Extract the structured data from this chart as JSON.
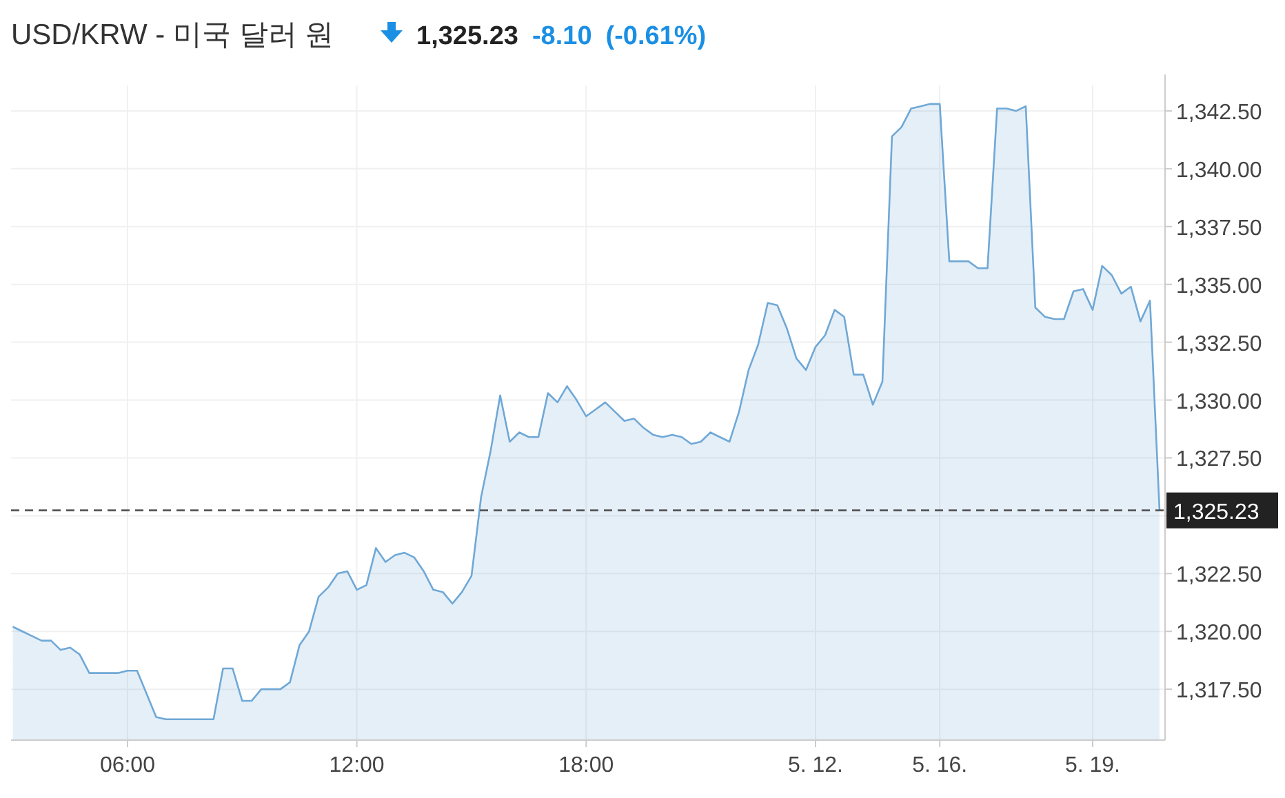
{
  "chart_data": {
    "type": "area",
    "title": "USD/KRW - 미국 달러 원",
    "annotations": [
      "1,325.23",
      "-8.10",
      "(-0.61%)"
    ],
    "categories": [
      null,
      null,
      null,
      null,
      null,
      null,
      null,
      null,
      null,
      null,
      null,
      null,
      "06:00",
      null,
      null,
      null,
      null,
      null,
      null,
      null,
      null,
      null,
      null,
      null,
      null,
      null,
      null,
      null,
      null,
      null,
      null,
      null,
      null,
      null,
      null,
      null,
      "12:00",
      null,
      null,
      null,
      null,
      null,
      null,
      null,
      null,
      null,
      null,
      null,
      null,
      null,
      null,
      null,
      null,
      null,
      null,
      null,
      null,
      null,
      null,
      null,
      "18:00",
      null,
      null,
      null,
      null,
      null,
      null,
      null,
      null,
      null,
      null,
      null,
      null,
      null,
      null,
      null,
      null,
      null,
      null,
      null,
      null,
      null,
      null,
      null,
      "5. 12.",
      null,
      null,
      null,
      null,
      null,
      null,
      null,
      null,
      null,
      null,
      null,
      null,
      "5. 16.",
      null,
      null,
      null,
      null,
      null,
      null,
      null,
      null,
      null,
      null,
      null,
      null,
      null,
      null,
      null,
      "5. 19.",
      null,
      null,
      null,
      null,
      null,
      null,
      null
    ],
    "series": [
      {
        "color": "#6fa8d6",
        "values": [
          1320.2,
          1320.0,
          1319.8,
          1319.6,
          1319.6,
          1319.2,
          1319.3,
          1319.0,
          1318.2,
          1318.2,
          1318.2,
          1318.2,
          1318.3,
          1318.3,
          1317.3,
          1316.3,
          1316.2,
          1316.2,
          1316.2,
          1316.2,
          1316.2,
          1316.2,
          1318.4,
          1318.4,
          1317.0,
          1317.0,
          1317.5,
          1317.5,
          1317.5,
          1317.8,
          1319.4,
          1320.0,
          1321.5,
          1321.9,
          1322.5,
          1322.6,
          1321.8,
          1322.0,
          1323.6,
          1323.0,
          1323.3,
          1323.4,
          1323.2,
          1322.6,
          1321.8,
          1321.7,
          1321.2,
          1321.7,
          1322.4,
          1325.8,
          1327.8,
          1330.2,
          1328.2,
          1328.6,
          1328.4,
          1328.4,
          1330.3,
          1329.9,
          1330.6,
          1330.0,
          1329.3,
          1329.6,
          1329.9,
          1329.5,
          1329.1,
          1329.2,
          1328.8,
          1328.5,
          1328.4,
          1328.5,
          1328.4,
          1328.1,
          1328.2,
          1328.6,
          1328.4,
          1328.2,
          1329.5,
          1331.3,
          1332.4,
          1334.2,
          1334.1,
          1333.1,
          1331.8,
          1331.3,
          1332.3,
          1332.8,
          1333.9,
          1333.6,
          1331.1,
          1331.1,
          1329.8,
          1330.8,
          1341.4,
          1341.8,
          1342.6,
          1342.7,
          1342.8,
          1342.8,
          1336.0,
          1336.0,
          1336.0,
          1335.7,
          1335.7,
          1342.6,
          1342.6,
          1342.5,
          1342.7,
          1334.0,
          1333.6,
          1333.5,
          1333.5,
          1334.7,
          1334.8,
          1333.9,
          1335.8,
          1335.4,
          1334.6,
          1334.9,
          1333.4,
          1334.3,
          1325.23
        ]
      }
    ],
    "ylim": [
      1315.3,
      1343.6
    ],
    "yticks": [
      {
        "value": 1317.5,
        "label": "1,317.50"
      },
      {
        "value": 1320,
        "label": "1,320.00"
      },
      {
        "value": 1322.5,
        "label": "1,322.50"
      },
      {
        "value": 1325,
        "label": null
      },
      {
        "value": 1327.5,
        "label": "1,327.50"
      },
      {
        "value": 1330,
        "label": "1,330.00"
      },
      {
        "value": 1332.5,
        "label": "1,332.50"
      },
      {
        "value": 1335,
        "label": "1,335.00"
      },
      {
        "value": 1337.5,
        "label": "1,337.50"
      },
      {
        "value": 1340,
        "label": "1,340.00"
      },
      {
        "value": 1342.5,
        "label": "1,342.50"
      }
    ],
    "ref_lines": [
      {
        "axis": "y",
        "value": 1325.23,
        "label": "1,325.23",
        "color": "#555555",
        "line_style": "dashed"
      }
    ],
    "grid": true
  }
}
